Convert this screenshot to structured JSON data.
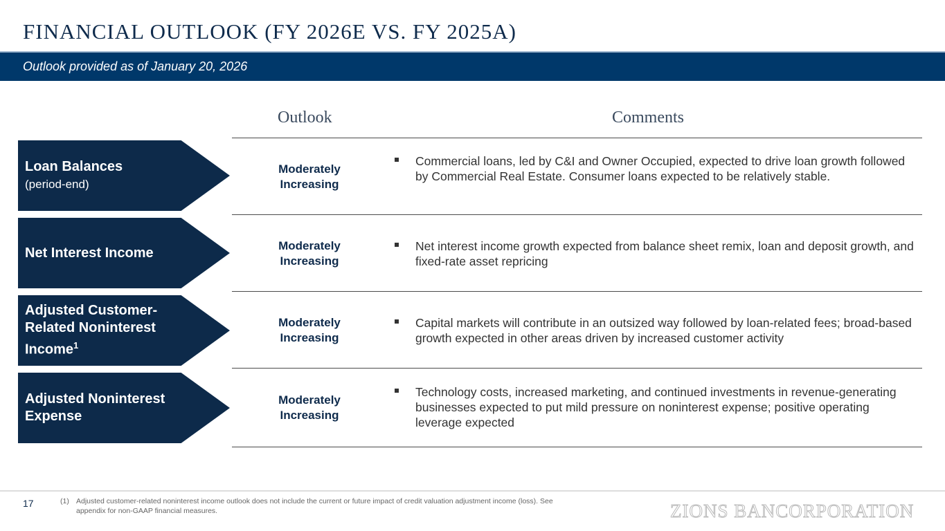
{
  "title": "FINANCIAL OUTLOOK (FY 2026E VS. FY 2025A)",
  "subtitle": "Outlook provided as of January 20, 2026",
  "headers": {
    "outlook": "Outlook",
    "comments": "Comments"
  },
  "rows": [
    {
      "label": "Loan Balances",
      "sub": "(period-end)",
      "outlook": "Moderately Increasing",
      "comment": "Commercial loans, led by C&I and Owner Occupied, expected to drive loan growth followed by Commercial Real Estate. Consumer loans expected to be relatively stable."
    },
    {
      "label": "Net Interest Income",
      "sub": "",
      "outlook": "Moderately Increasing",
      "comment": "Net interest income growth expected from balance sheet remix, loan and deposit growth, and fixed-rate asset repricing"
    },
    {
      "label": "Adjusted Customer-Related Noninterest Income",
      "sup": "1",
      "outlook": "Moderately Increasing",
      "comment": "Capital markets will contribute in an outsized way followed by loan-related fees; broad-based growth expected in other areas driven by increased customer activity"
    },
    {
      "label": "Adjusted Noninterest Expense",
      "sub": "",
      "outlook": "Moderately Increasing",
      "comment": "Technology costs, increased marketing, and continued investments in revenue-generating businesses expected to put mild pressure on noninterest expense; positive operating leverage expected"
    }
  ],
  "footer": {
    "page": "17",
    "note_num": "(1)",
    "note": "Adjusted customer-related noninterest income outlook does not include the current or future impact of credit valuation adjustment income (loss). See appendix for non-GAAP financial measures.",
    "logo": "ZIONS BANCORPORATION"
  }
}
